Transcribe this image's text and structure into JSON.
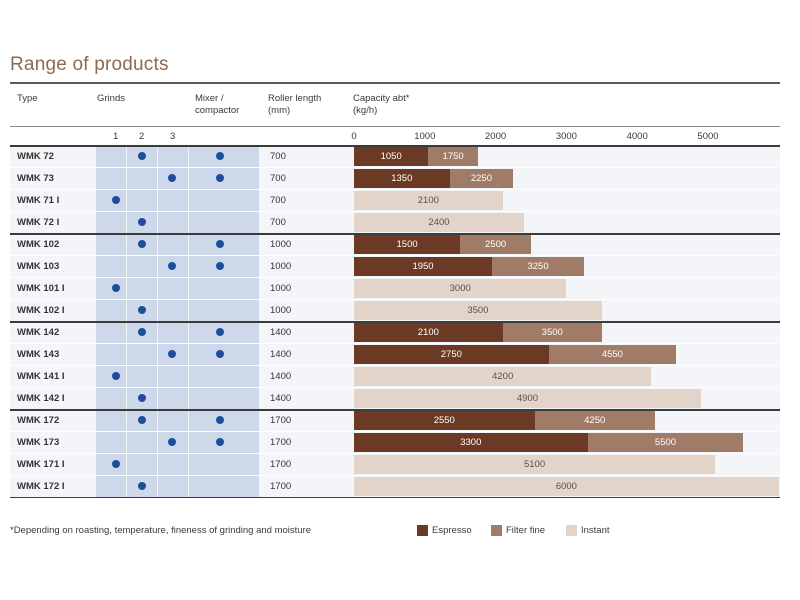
{
  "title": "Range of products",
  "headers": {
    "type": "Type",
    "grinds": "Grinds",
    "mixer_line1": "Mixer /",
    "mixer_line2": "compactor",
    "roller_line1": "Roller length",
    "roller_line2": "(mm)",
    "capacity_line1": "Capacity abt*",
    "capacity_line2": "(kg/h)"
  },
  "grind_labels": [
    "1",
    "2",
    "3"
  ],
  "footnote": "*Depending on roasting, temperature, fineness of grinding and moisture",
  "colors": {
    "espresso": "#6b3a24",
    "filter": "#a07c68",
    "instant": "#e3d4ca",
    "dot": "#1d4e9a",
    "cell": "#cdd8ea",
    "title": "#8d6a52"
  },
  "chart_data": {
    "type": "bar",
    "title": "Range of products",
    "xlabel": "Capacity abt* (kg/h)",
    "xlim": [
      0,
      5800
    ],
    "xticks": [
      0,
      1000,
      2000,
      3000,
      4000,
      5000
    ],
    "legend": [
      {
        "name": "Espresso",
        "color": "#6b3a24"
      },
      {
        "name": "Filter fine",
        "color": "#a07c68"
      },
      {
        "name": "Instant",
        "color": "#e3d4ca"
      }
    ],
    "rows": [
      {
        "type": "WMK 72",
        "grinds": [
          2
        ],
        "mixer": true,
        "roller": "700",
        "espresso": 1050,
        "filter": 1750,
        "instant": null
      },
      {
        "type": "WMK 73",
        "grinds": [
          3
        ],
        "mixer": true,
        "roller": "700",
        "espresso": 1350,
        "filter": 2250,
        "instant": null
      },
      {
        "type": "WMK 71 I",
        "grinds": [
          1
        ],
        "mixer": false,
        "roller": "700",
        "espresso": null,
        "filter": null,
        "instant": 2100
      },
      {
        "type": "WMK 72 I",
        "grinds": [
          2
        ],
        "mixer": false,
        "roller": "700",
        "espresso": null,
        "filter": null,
        "instant": 2400
      },
      {
        "type": "WMK 102",
        "grinds": [
          2
        ],
        "mixer": true,
        "roller": "1000",
        "espresso": 1500,
        "filter": 2500,
        "instant": null
      },
      {
        "type": "WMK 103",
        "grinds": [
          3
        ],
        "mixer": true,
        "roller": "1000",
        "espresso": 1950,
        "filter": 3250,
        "instant": null
      },
      {
        "type": "WMK 101 I",
        "grinds": [
          1
        ],
        "mixer": false,
        "roller": "1000",
        "espresso": null,
        "filter": null,
        "instant": 3000
      },
      {
        "type": "WMK 102 I",
        "grinds": [
          2
        ],
        "mixer": false,
        "roller": "1000",
        "espresso": null,
        "filter": null,
        "instant": 3500
      },
      {
        "type": "WMK 142",
        "grinds": [
          2
        ],
        "mixer": true,
        "roller": "1400",
        "espresso": 2100,
        "filter": 3500,
        "instant": null
      },
      {
        "type": "WMK 143",
        "grinds": [
          3
        ],
        "mixer": true,
        "roller": "1400",
        "espresso": 2750,
        "filter": 4550,
        "instant": null
      },
      {
        "type": "WMK 141 I",
        "grinds": [
          1
        ],
        "mixer": false,
        "roller": "1400",
        "espresso": null,
        "filter": null,
        "instant": 4200
      },
      {
        "type": "WMK 142 I",
        "grinds": [
          2
        ],
        "mixer": false,
        "roller": "1400",
        "espresso": null,
        "filter": null,
        "instant": 4900
      },
      {
        "type": "WMK 172",
        "grinds": [
          2
        ],
        "mixer": true,
        "roller": "1700",
        "espresso": 2550,
        "filter": 4250,
        "instant": null
      },
      {
        "type": "WMK 173",
        "grinds": [
          3
        ],
        "mixer": true,
        "roller": "1700",
        "espresso": 3300,
        "filter": 5500,
        "instant": null
      },
      {
        "type": "WMK 171 I",
        "grinds": [
          1
        ],
        "mixer": false,
        "roller": "1700",
        "espresso": null,
        "filter": null,
        "instant": 5100
      },
      {
        "type": "WMK 172 I",
        "grinds": [
          2
        ],
        "mixer": false,
        "roller": "1700",
        "espresso": null,
        "filter": null,
        "instant": 6000
      }
    ]
  }
}
